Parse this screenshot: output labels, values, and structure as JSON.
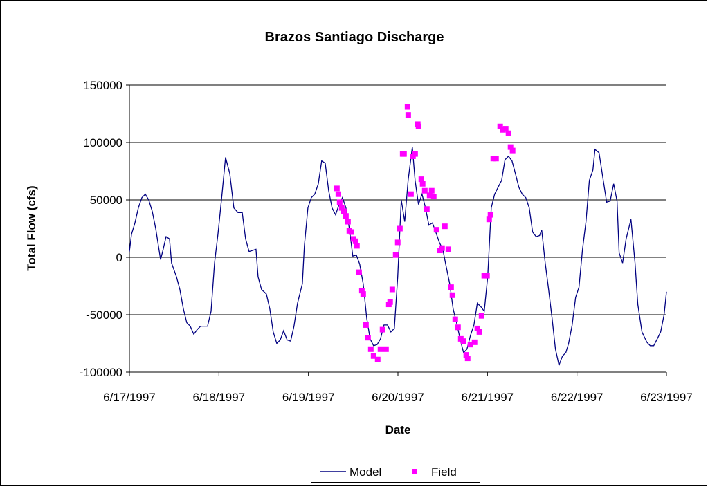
{
  "chart_data": {
    "type": "scatter",
    "title": "Brazos Santiago Discharge",
    "xlabel": "Date",
    "ylabel": "Total Flow (cfs)",
    "xlim": [
      0,
      6
    ],
    "ylim": [
      -100000,
      150000
    ],
    "xticks": [
      {
        "value": 0,
        "label": "6/17/1997"
      },
      {
        "value": 1,
        "label": "6/18/1997"
      },
      {
        "value": 2,
        "label": "6/19/1997"
      },
      {
        "value": 3,
        "label": "6/20/1997"
      },
      {
        "value": 4,
        "label": "6/21/1997"
      },
      {
        "value": 5,
        "label": "6/22/1997"
      },
      {
        "value": 6,
        "label": "6/23/1997"
      }
    ],
    "yticks": [
      -100000,
      -50000,
      0,
      50000,
      100000,
      150000
    ],
    "grid": true,
    "legend": "bottom",
    "series": [
      {
        "name": "Model",
        "type": "line",
        "color": "#000080",
        "x": [
          0,
          0.023,
          0.062,
          0.1,
          0.139,
          0.178,
          0.216,
          0.255,
          0.294,
          0.348,
          0.371,
          0.41,
          0.448,
          0.471,
          0.526,
          0.564,
          0.603,
          0.641,
          0.68,
          0.719,
          0.757,
          0.796,
          0.873,
          0.912,
          0.951,
          0.989,
          1.028,
          1.074,
          1.121,
          1.167,
          1.213,
          1.26,
          1.298,
          1.337,
          1.376,
          1.414,
          1.437,
          1.476,
          1.53,
          1.569,
          1.607,
          1.646,
          1.685,
          1.723,
          1.762,
          1.801,
          1.839,
          1.878,
          1.932,
          1.955,
          1.994,
          2.032,
          2.071,
          2.11,
          2.148,
          2.187,
          2.226,
          2.264,
          2.303,
          2.342,
          2.38,
          2.419,
          2.457,
          2.496,
          2.535,
          2.573,
          2.612,
          2.651,
          2.689,
          2.728,
          2.767,
          2.805,
          2.844,
          2.883,
          2.921,
          2.96,
          2.998,
          3.037,
          3.076,
          3.114,
          3.161,
          3.192,
          3.23,
          3.269,
          3.308,
          3.346,
          3.385,
          3.423,
          3.462,
          3.501,
          3.539,
          3.578,
          3.617,
          3.655,
          3.694,
          3.733,
          3.771,
          3.81,
          3.849,
          3.887,
          3.926,
          3.964,
          4.003,
          4.042,
          4.08,
          4.119,
          4.158,
          4.196,
          4.235,
          4.274,
          4.312,
          4.351,
          4.389,
          4.428,
          4.467,
          4.505,
          4.544,
          4.583,
          4.606,
          4.645,
          4.683,
          4.722,
          4.76,
          4.799,
          4.838,
          4.876,
          4.907,
          4.946,
          4.985,
          5.023,
          5.062,
          5.101,
          5.139,
          5.178,
          5.201,
          5.247,
          5.294,
          5.332,
          5.371,
          5.41,
          5.448,
          5.471,
          5.51,
          5.549,
          5.603,
          5.649,
          5.68,
          5.726,
          5.781,
          5.819,
          5.858,
          5.897,
          5.935,
          5.974,
          6
        ],
        "values": [
          5000,
          20000,
          30000,
          43000,
          52000,
          55000,
          50000,
          40000,
          25000,
          -2000,
          5000,
          18000,
          16000,
          -5000,
          -17000,
          -28000,
          -45000,
          -57000,
          -60000,
          -67000,
          -63000,
          -60000,
          -60000,
          -47000,
          -5000,
          20000,
          50000,
          87000,
          73000,
          43000,
          39000,
          39000,
          16000,
          5000,
          6000,
          7000,
          -17000,
          -28000,
          -32000,
          -45000,
          -65000,
          -75000,
          -72000,
          -64000,
          -72000,
          -73000,
          -60000,
          -40000,
          -23000,
          10000,
          43000,
          52000,
          55000,
          64000,
          84000,
          82000,
          58000,
          43000,
          37000,
          46000,
          52000,
          43000,
          25000,
          1000,
          2000,
          -6000,
          -23000,
          -53000,
          -71000,
          -77000,
          -76000,
          -71000,
          -59000,
          -59000,
          -65000,
          -62000,
          -17000,
          50000,
          31000,
          67000,
          96000,
          67000,
          46000,
          55000,
          43000,
          28000,
          30000,
          22000,
          13000,
          7000,
          -8000,
          -23000,
          -45000,
          -57000,
          -71000,
          -83000,
          -80000,
          -68000,
          -59000,
          -40000,
          -43000,
          -47000,
          -17000,
          43000,
          55000,
          61000,
          67000,
          85000,
          88000,
          84000,
          73000,
          61000,
          55000,
          52000,
          43000,
          22000,
          18000,
          19000,
          24000,
          -5000,
          -28000,
          -53000,
          -80000,
          -94000,
          -86000,
          -83000,
          -75000,
          -59000,
          -35000,
          -26000,
          7000,
          31000,
          67000,
          76000,
          94000,
          91000,
          67000,
          48000,
          49000,
          64000,
          49000,
          4000,
          -5000,
          16000,
          33000,
          -5000,
          -41000,
          -65000,
          -74000,
          -77000,
          -77000,
          -71000,
          -65000,
          -50000,
          -30000
        ]
      },
      {
        "name": "Field",
        "type": "scatter",
        "color": "#ff00ff",
        "x": [
          2.318,
          2.334,
          2.349,
          2.372,
          2.396,
          2.419,
          2.442,
          2.457,
          2.481,
          2.504,
          2.527,
          2.542,
          2.566,
          2.597,
          2.612,
          2.643,
          2.666,
          2.697,
          2.728,
          2.774,
          2.805,
          2.828,
          2.867,
          2.898,
          2.913,
          2.937,
          2.975,
          2.998,
          3.022,
          3.053,
          3.068,
          3.107,
          3.115,
          3.146,
          3.168,
          3.192,
          3.222,
          3.23,
          3.261,
          3.276,
          3.3,
          3.323,
          3.354,
          3.377,
          3.4,
          3.431,
          3.47,
          3.493,
          3.524,
          3.563,
          3.594,
          3.609,
          3.64,
          3.671,
          3.702,
          3.733,
          3.763,
          3.779,
          3.81,
          3.856,
          3.887,
          3.91,
          3.934,
          3.964,
          3.995,
          4.019,
          4.034,
          4.065,
          4.096,
          4.142,
          4.173,
          4.204,
          4.235,
          4.258,
          4.281
        ],
        "values": [
          60000,
          55000,
          48000,
          43000,
          40000,
          36000,
          31000,
          23000,
          22000,
          16000,
          14000,
          10000,
          -13000,
          -29000,
          -32000,
          -59000,
          -70000,
          -80000,
          -86000,
          -89000,
          -80000,
          -63000,
          -80000,
          -41000,
          -39000,
          -28000,
          2000,
          13000,
          25000,
          90000,
          90000,
          131000,
          124000,
          55000,
          88000,
          90000,
          116000,
          114000,
          68000,
          64000,
          58000,
          42000,
          54000,
          58000,
          53000,
          24000,
          6000,
          8000,
          27000,
          7000,
          -26000,
          -33000,
          -54000,
          -61000,
          -71000,
          -73000,
          -85000,
          -88000,
          -76000,
          -74000,
          -62000,
          -65000,
          -51000,
          -16000,
          -16000,
          33000,
          37000,
          86000,
          86000,
          114000,
          111000,
          112000,
          108000,
          96000,
          93000
        ]
      }
    ]
  }
}
